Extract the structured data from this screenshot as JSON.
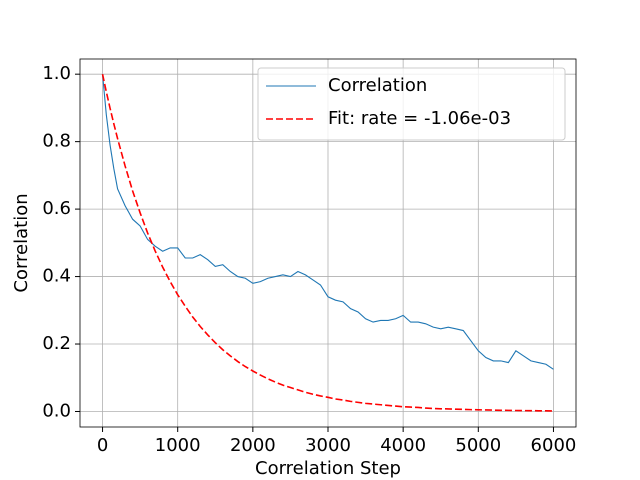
{
  "chart_data": {
    "type": "line",
    "xlabel": "Correlation Step",
    "ylabel": "Correlation",
    "x": [
      0,
      50,
      100,
      150,
      200,
      300,
      400,
      500,
      600,
      700,
      800,
      900,
      1000,
      1100,
      1200,
      1300,
      1400,
      1500,
      1600,
      1700,
      1800,
      1900,
      2000,
      2100,
      2200,
      2300,
      2400,
      2500,
      2600,
      2700,
      2800,
      2900,
      3000,
      3100,
      3200,
      3300,
      3400,
      3500,
      3600,
      3700,
      3800,
      3900,
      4000,
      4100,
      4200,
      4300,
      4400,
      4500,
      4600,
      4700,
      4800,
      4900,
      5000,
      5100,
      5200,
      5300,
      5400,
      5500,
      5600,
      5700,
      5800,
      5900,
      6000
    ],
    "series": [
      {
        "name": "Correlation",
        "color": "#1f77b4",
        "linestyle": "solid",
        "values": [
          1.0,
          0.88,
          0.79,
          0.72,
          0.66,
          0.61,
          0.57,
          0.55,
          0.51,
          0.49,
          0.475,
          0.485,
          0.485,
          0.455,
          0.455,
          0.465,
          0.45,
          0.43,
          0.435,
          0.415,
          0.4,
          0.395,
          0.38,
          0.385,
          0.395,
          0.4,
          0.405,
          0.4,
          0.415,
          0.405,
          0.39,
          0.375,
          0.34,
          0.33,
          0.325,
          0.305,
          0.295,
          0.275,
          0.265,
          0.27,
          0.27,
          0.275,
          0.285,
          0.265,
          0.265,
          0.26,
          0.25,
          0.245,
          0.25,
          0.245,
          0.24,
          0.21,
          0.18,
          0.16,
          0.15,
          0.15,
          0.145,
          0.18,
          0.165,
          0.15,
          0.145,
          0.14,
          0.125
        ]
      },
      {
        "name": "Fit: rate = -1.06e-03",
        "color": "#ff0000",
        "linestyle": "dashed",
        "values": [
          1.0,
          0.948,
          0.899,
          0.853,
          0.809,
          0.728,
          0.654,
          0.589,
          0.529,
          0.476,
          0.428,
          0.385,
          0.346,
          0.312,
          0.28,
          0.252,
          0.227,
          0.204,
          0.183,
          0.165,
          0.148,
          0.133,
          0.12,
          0.108,
          0.097,
          0.087,
          0.078,
          0.071,
          0.064,
          0.057,
          0.051,
          0.046,
          0.042,
          0.037,
          0.034,
          0.03,
          0.027,
          0.024,
          0.022,
          0.02,
          0.018,
          0.016,
          0.014,
          0.013,
          0.012,
          0.01,
          0.009,
          0.008,
          0.0076,
          0.0068,
          0.0062,
          0.0055,
          0.005,
          0.0045,
          0.004,
          0.0036,
          0.0033,
          0.0029,
          0.0026,
          0.0024,
          0.0021,
          0.0019,
          0.0017
        ]
      }
    ],
    "xlim": [
      -300,
      6300
    ],
    "xticks": [
      0,
      1000,
      2000,
      3000,
      4000,
      5000,
      6000
    ],
    "ylim": [
      -0.046,
      1.045
    ],
    "yticks": [
      {
        "value": 0,
        "label": "0.0"
      },
      0.2,
      0.4,
      0.6,
      0.8,
      {
        "value": 1,
        "label": "1.0"
      }
    ],
    "grid": true,
    "legend": "upper right"
  }
}
